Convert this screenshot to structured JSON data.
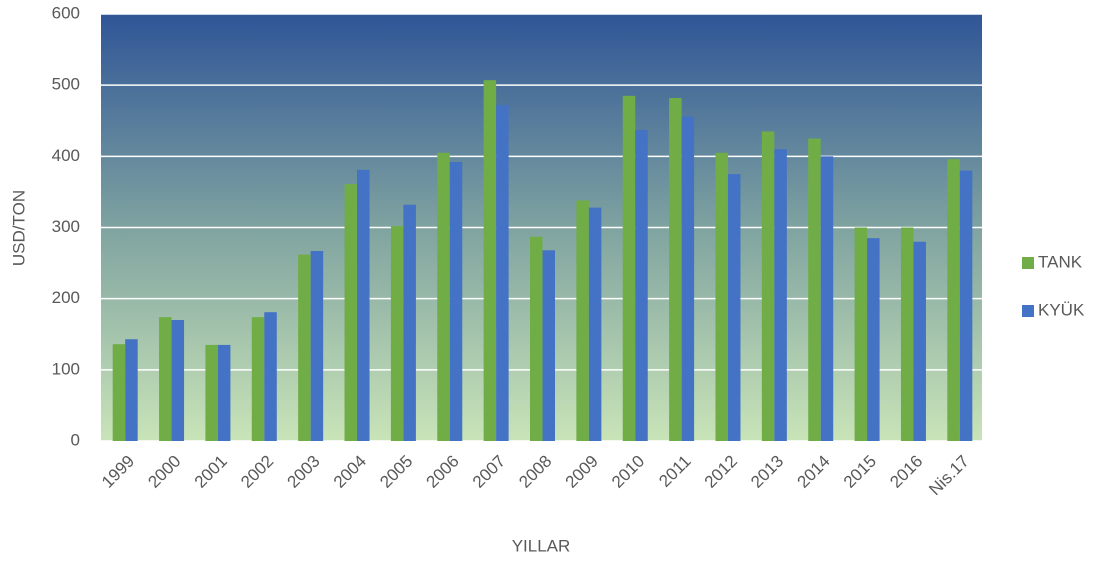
{
  "chart_data": {
    "type": "bar",
    "x_label": "YILLAR",
    "y_label": "USD/TON",
    "categories": [
      "1999",
      "2000",
      "2001",
      "2002",
      "2003",
      "2004",
      "2005",
      "2006",
      "2007",
      "2008",
      "2009",
      "2010",
      "2011",
      "2012",
      "2013",
      "2014",
      "2015",
      "2016",
      "Nis.17"
    ],
    "series": [
      {
        "name": "TANK",
        "color": "#70ad47",
        "values": [
          136,
          174,
          135,
          174,
          262,
          361,
          302,
          405,
          507,
          287,
          338,
          485,
          482,
          405,
          435,
          425,
          300,
          300,
          396
        ]
      },
      {
        "name": "KYÜK",
        "color": "#4472c4",
        "values": [
          143,
          170,
          135,
          181,
          267,
          381,
          332,
          392,
          472,
          268,
          328,
          437,
          456,
          375,
          410,
          400,
          285,
          280,
          380
        ]
      }
    ],
    "ylim": [
      0,
      600
    ],
    "yticks": [
      0,
      100,
      200,
      300,
      400,
      500,
      600
    ],
    "grid": true,
    "legend": "right"
  }
}
